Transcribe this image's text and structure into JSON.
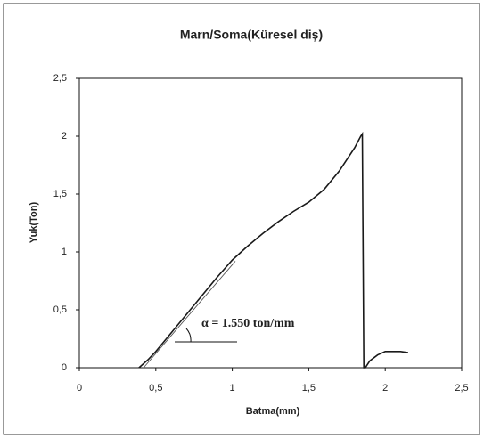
{
  "chart_data": {
    "type": "line",
    "title": "Marn/Soma(Küresel diş)",
    "x_label": "Batma(mm)",
    "y_label": "Yuk(Ton)",
    "annotation": "α = 1.550 ton/mm",
    "xlim": [
      0,
      2.5
    ],
    "ylim": [
      0,
      2.5
    ],
    "xticks": [
      0,
      {
        "value": 0.5,
        "label": "0,5"
      },
      1,
      {
        "value": 1.5,
        "label": "1,5"
      },
      2,
      {
        "value": 2.5,
        "label": "2,5"
      }
    ],
    "yticks": [
      0,
      {
        "value": 0.5,
        "label": "0,5"
      },
      1,
      {
        "value": 1.5,
        "label": "1,5"
      },
      2,
      {
        "value": 2.5,
        "label": "2,5"
      }
    ],
    "series": [
      {
        "color": "#1a1a1a",
        "x": [
          0.39,
          0.45,
          0.5,
          0.6,
          0.7,
          0.8,
          0.9,
          1.0,
          1.1,
          1.2,
          1.3,
          1.4,
          1.5,
          1.6,
          1.7,
          1.8,
          1.84,
          1.85,
          1.86,
          1.87,
          1.9,
          1.95,
          2.0,
          2.05,
          2.1,
          2.15
        ],
        "values": [
          0,
          0.07,
          0.14,
          0.3,
          0.46,
          0.62,
          0.78,
          0.93,
          1.05,
          1.16,
          1.26,
          1.35,
          1.43,
          1.54,
          1.7,
          1.9,
          2.0,
          2.02,
          0,
          0,
          0.06,
          0.11,
          0.14,
          0.14,
          0.14,
          0.13
        ]
      },
      {
        "color": "#555555",
        "x": [
          0.42,
          1.02
        ],
        "values": [
          0,
          0.92
        ]
      }
    ]
  }
}
